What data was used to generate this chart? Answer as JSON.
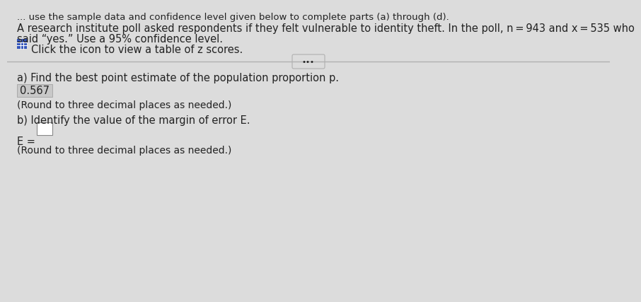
{
  "background_color": "#dcdcdc",
  "top_text": "... use the sample data and confidence level given below to complete parts (a) through (d).",
  "problem_text_line1": "A research institute poll asked respondents if they felt vulnerable to identity theft. In the poll, n = 943 and x = 535 who",
  "problem_text_line2": "said “yes.” Use a 95% confidence level.",
  "icon_text": "Click the icon to view a table of z scores.",
  "divider_button_text": "•••",
  "part_a_label": "a) Find the best point estimate of the population proportion p.",
  "part_a_answer": "0.567",
  "part_a_round": "(Round to three decimal places as needed.)",
  "part_b_label": "b) Identify the value of the margin of error E.",
  "part_b_eq": "E =",
  "part_b_round": "(Round to three decimal places as needed.)",
  "answer_box_color": "#c8c8c8",
  "empty_box_color": "#ffffff",
  "text_color": "#222222",
  "divider_color": "#b0b0b0",
  "icon_color": "#3355bb",
  "font_size_body": 10.5,
  "font_size_small": 10.0
}
